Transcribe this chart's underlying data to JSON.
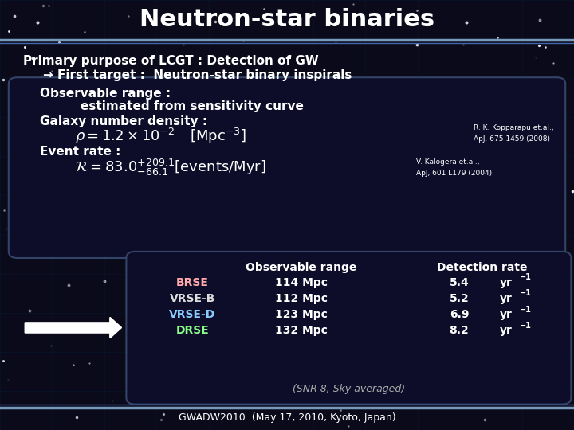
{
  "title": "Neutron-star binaries",
  "title_color": "#ffffff",
  "title_fontsize": 22,
  "bg_color": "#0a0a1a",
  "line1": "Primary purpose of LCGT : Detection of GW",
  "line2": "→ First target :  Neutron-star binary inspirals",
  "box1_text1": "Observable range :",
  "box1_text2": "estimated from sensitivity curve",
  "box1_text3": "Galaxy number density :",
  "box1_text4": "Event rate :",
  "box1_ref1_line1": "R. K. Kopparapu et.al.,",
  "box1_ref1_line2": "ApJ. 675 1459 (2008)",
  "box1_ref2_line1": "V. Kalogera et.al.,",
  "box1_ref2_line2": "ApJ, 601 L179 (2004)",
  "box2_col1": [
    "BRSE",
    "VRSE-B",
    "VRSE-D",
    "DRSE"
  ],
  "box2_col1_colors": [
    "#ffaaaa",
    "#dddddd",
    "#88ccff",
    "#88ff88"
  ],
  "box2_col2": [
    "114 Mpc",
    "112 Mpc",
    "123 Mpc",
    "132 Mpc"
  ],
  "box2_col3": [
    "5.4",
    "5.2",
    "6.9",
    "8.2"
  ],
  "box2_header1": "Observable range",
  "box2_header2": "Detection rate",
  "box2_note": "(SNR 8, Sky averaged)",
  "footer": "GWADW2010  (May 17, 2010, Kyoto, Japan)",
  "footer_color": "#ffffff",
  "box_bg_color": "#0d0d2a",
  "box_edge_color": "#334466"
}
